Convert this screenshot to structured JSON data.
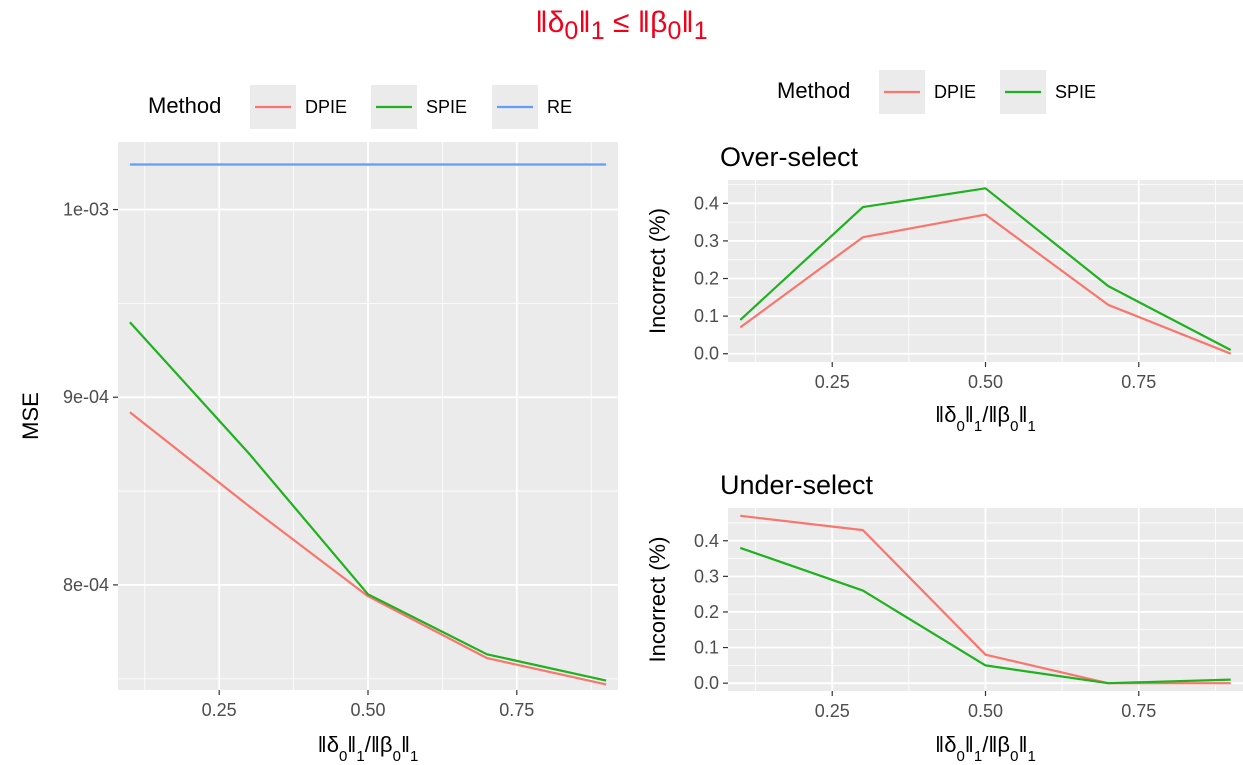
{
  "figure": {
    "title_html": "‖δ<sub>0</sub>‖<sub>1</sub> ≤ ‖β<sub>0</sub>‖<sub>1</sub>",
    "title_color": "#f2001a"
  },
  "colors": {
    "DPIE": "#F8766D",
    "SPIE": "#1FB11F",
    "RE": "#619CFF",
    "panel_bg": "#EBEBEB",
    "grid_major": "#FFFFFF"
  },
  "chart_data": [
    {
      "type": "line",
      "id": "mse",
      "title": "",
      "xlabel": "‖δ0‖1/‖β0‖1",
      "ylabel": "MSE",
      "xlim": [
        0.08,
        0.92
      ],
      "ylim": [
        0.000744,
        0.001036
      ],
      "x_ticks": [
        0.25,
        0.5,
        0.75
      ],
      "x_tick_labels": [
        "0.25",
        "0.50",
        "0.75"
      ],
      "y_ticks": [
        0.0008,
        0.0009,
        0.001
      ],
      "y_tick_labels": [
        "8e-04",
        "9e-04",
        "1e-03"
      ],
      "legend": {
        "title": "Method",
        "position": "top",
        "entries": [
          "DPIE",
          "SPIE",
          "RE"
        ]
      },
      "grid": true,
      "series": [
        {
          "name": "DPIE",
          "x": [
            0.1,
            0.3,
            0.5,
            0.7,
            0.9
          ],
          "values": [
            0.000892,
            0.000842,
            0.000794,
            0.000761,
            0.000747
          ]
        },
        {
          "name": "SPIE",
          "x": [
            0.1,
            0.3,
            0.5,
            0.7,
            0.9
          ],
          "values": [
            0.00094,
            0.00087,
            0.000795,
            0.000763,
            0.000749
          ]
        },
        {
          "name": "RE",
          "x": [
            0.1,
            0.3,
            0.5,
            0.7,
            0.9
          ],
          "values": [
            0.001024,
            0.001024,
            0.001024,
            0.001024,
            0.001024
          ]
        }
      ]
    },
    {
      "type": "line",
      "id": "over",
      "title": "Over-select",
      "xlabel": "‖δ0‖1/‖β0‖1",
      "ylabel": "Incorrect (%)",
      "xlim": [
        0.08,
        0.92
      ],
      "ylim": [
        -0.022,
        0.462
      ],
      "x_ticks": [
        0.25,
        0.5,
        0.75
      ],
      "x_tick_labels": [
        "0.25",
        "0.50",
        "0.75"
      ],
      "y_ticks": [
        0,
        0.1,
        0.2,
        0.3,
        0.4
      ],
      "y_tick_labels": [
        "0.0",
        "0.1",
        "0.2",
        "0.3",
        "0.4"
      ],
      "legend": {
        "title": "Method",
        "position": "top",
        "entries": [
          "DPIE",
          "SPIE"
        ]
      },
      "grid": true,
      "series": [
        {
          "name": "DPIE",
          "x": [
            0.1,
            0.3,
            0.5,
            0.7,
            0.9
          ],
          "values": [
            0.07,
            0.31,
            0.37,
            0.13,
            0.0
          ]
        },
        {
          "name": "SPIE",
          "x": [
            0.1,
            0.3,
            0.5,
            0.7,
            0.9
          ],
          "values": [
            0.09,
            0.39,
            0.44,
            0.18,
            0.01
          ]
        }
      ]
    },
    {
      "type": "line",
      "id": "under",
      "title": "Under-select",
      "xlabel": "‖δ0‖1/‖β0‖1",
      "ylabel": "Incorrect (%)",
      "xlim": [
        0.08,
        0.92
      ],
      "ylim": [
        -0.022,
        0.492
      ],
      "x_ticks": [
        0.25,
        0.5,
        0.75
      ],
      "x_tick_labels": [
        "0.25",
        "0.50",
        "0.75"
      ],
      "y_ticks": [
        0,
        0.1,
        0.2,
        0.3,
        0.4
      ],
      "y_tick_labels": [
        "0.0",
        "0.1",
        "0.2",
        "0.3",
        "0.4"
      ],
      "grid": true,
      "series": [
        {
          "name": "DPIE",
          "x": [
            0.1,
            0.3,
            0.5,
            0.7,
            0.9
          ],
          "values": [
            0.47,
            0.43,
            0.08,
            0.0,
            0.0
          ]
        },
        {
          "name": "SPIE",
          "x": [
            0.1,
            0.3,
            0.5,
            0.7,
            0.9
          ],
          "values": [
            0.38,
            0.26,
            0.05,
            0.0,
            0.01
          ]
        }
      ]
    }
  ]
}
